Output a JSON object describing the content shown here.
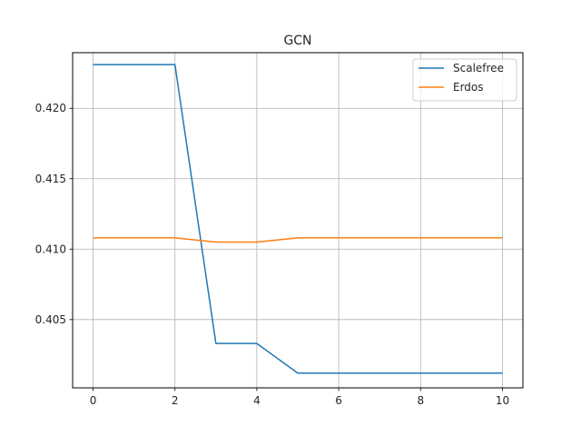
{
  "chart_data": {
    "type": "line",
    "title": "GCN",
    "xlabel": "",
    "ylabel": "",
    "x": [
      0,
      1,
      2,
      3,
      4,
      5,
      6,
      7,
      8,
      9,
      10
    ],
    "xlim": [
      -0.5,
      10.5
    ],
    "ylim": [
      0.40015,
      0.42395
    ],
    "x_ticks": [
      0,
      2,
      4,
      6,
      8,
      10
    ],
    "y_ticks": [
      0.405,
      0.41,
      0.415,
      0.42
    ],
    "x_tick_labels": [
      "0",
      "2",
      "4",
      "6",
      "8",
      "10"
    ],
    "y_tick_labels": [
      "0.405",
      "0.410",
      "0.415",
      "0.420"
    ],
    "grid": true,
    "legend_position": "top-right",
    "series": [
      {
        "name": "Scalefree",
        "color": "#1f77b4",
        "values": [
          0.4231,
          0.4231,
          0.4231,
          0.4033,
          0.4033,
          0.4012,
          0.4012,
          0.4012,
          0.4012,
          0.4012,
          0.4012
        ]
      },
      {
        "name": "Erdos",
        "color": "#ff7f0e",
        "values": [
          0.4108,
          0.4108,
          0.4108,
          0.4105,
          0.4105,
          0.4108,
          0.4108,
          0.4108,
          0.4108,
          0.4108,
          0.4108
        ]
      }
    ]
  }
}
